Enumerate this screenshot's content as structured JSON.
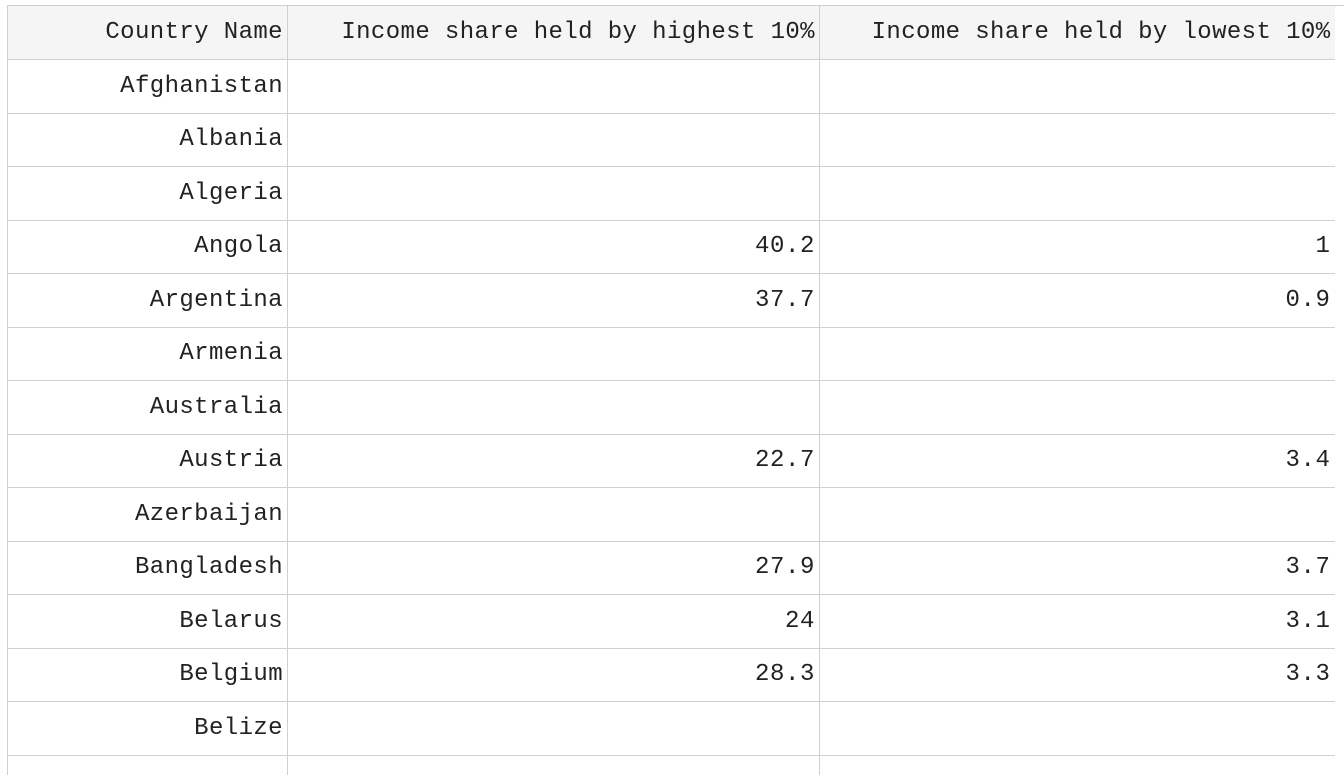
{
  "table": {
    "columns": [
      "Country Name",
      "Income share held by highest 10%",
      "Income share held by lowest 10%"
    ],
    "rows": [
      {
        "country": "Afghanistan",
        "highest": "",
        "lowest": ""
      },
      {
        "country": "Albania",
        "highest": "",
        "lowest": ""
      },
      {
        "country": "Algeria",
        "highest": "",
        "lowest": ""
      },
      {
        "country": "Angola",
        "highest": "40.2",
        "lowest": "1"
      },
      {
        "country": "Argentina",
        "highest": "37.7",
        "lowest": "0.9"
      },
      {
        "country": "Armenia",
        "highest": "",
        "lowest": ""
      },
      {
        "country": "Australia",
        "highest": "",
        "lowest": ""
      },
      {
        "country": "Austria",
        "highest": "22.7",
        "lowest": "3.4"
      },
      {
        "country": "Azerbaijan",
        "highest": "",
        "lowest": ""
      },
      {
        "country": "Bangladesh",
        "highest": "27.9",
        "lowest": "3.7"
      },
      {
        "country": "Belarus",
        "highest": "24",
        "lowest": "3.1"
      },
      {
        "country": "Belgium",
        "highest": "28.3",
        "lowest": "3.3"
      },
      {
        "country": "Belize",
        "highest": "",
        "lowest": ""
      },
      {
        "country": "",
        "highest": "",
        "lowest": ""
      }
    ]
  },
  "colors": {
    "header_bg": "#f5f5f5",
    "grid_line": "#d0d0d0",
    "text": "#222222"
  }
}
